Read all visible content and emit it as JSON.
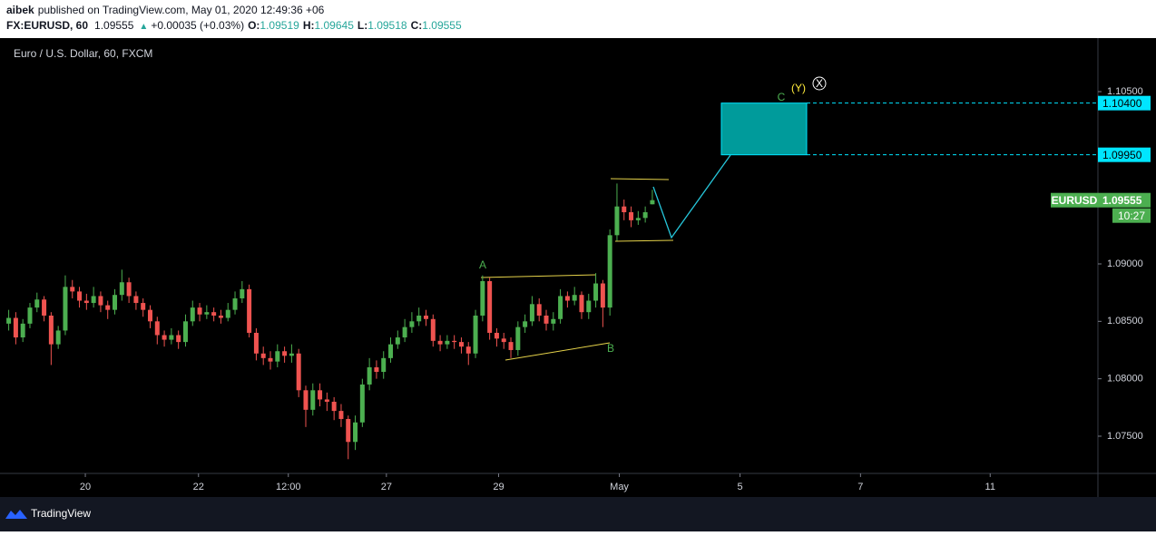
{
  "header": {
    "author": "aibek",
    "published": "published on TradingView.com, May 01, 2020 12:49:36 +06",
    "symbol": "FX:EURUSD, 60",
    "last": 1.09555,
    "arrow": "▲",
    "change": "+0.00035 (+0.03%)",
    "ohlc": [
      {
        "label": "O:",
        "value": 1.09519
      },
      {
        "label": "H:",
        "value": 1.09645
      },
      {
        "label": "L:",
        "value": 1.09518
      },
      {
        "label": "C:",
        "value": 1.09555
      }
    ]
  },
  "footer": {
    "brand": "TradingView"
  },
  "chart_data": {
    "type": "candlestick",
    "title": "Euro / U.S. Dollar, 60, FXCM",
    "up_color": "#4caf50",
    "down_color": "#ef5350",
    "x": [
      1,
      4,
      7,
      10,
      13,
      16,
      19,
      22,
      25,
      28,
      31,
      34,
      37,
      40,
      43,
      46,
      49,
      52,
      55,
      58,
      61,
      64,
      67,
      70,
      73,
      76,
      79,
      82,
      85,
      88,
      91,
      94,
      97,
      100,
      103,
      106,
      109,
      112,
      115,
      118,
      121,
      124,
      127,
      130,
      133,
      136,
      139,
      142,
      145,
      148,
      151,
      154,
      157,
      160,
      163,
      166,
      169,
      172,
      175,
      178,
      181,
      184,
      187,
      190,
      193,
      196,
      199,
      202,
      205,
      208,
      211,
      214,
      217,
      220,
      223,
      226,
      229,
      232,
      235,
      238,
      241,
      244,
      247,
      250,
      253,
      256,
      259,
      262,
      265,
      268,
      271,
      274
    ],
    "open": [
      1.0848,
      1.0853,
      1.0836,
      1.0848,
      1.0862,
      1.0869,
      1.0855,
      1.083,
      1.0842,
      1.088,
      1.0876,
      1.0868,
      1.0866,
      1.0872,
      1.0864,
      1.086,
      1.0873,
      1.0884,
      1.0872,
      1.0866,
      1.086,
      1.085,
      1.0838,
      1.0834,
      1.0838,
      1.0832,
      1.085,
      1.0862,
      1.0856,
      1.0858,
      1.0855,
      1.0853,
      1.086,
      1.087,
      1.0878,
      1.084,
      1.0822,
      1.0818,
      1.0815,
      1.0824,
      1.082,
      1.0822,
      1.079,
      1.0773,
      1.079,
      1.0782,
      1.078,
      1.0772,
      1.0765,
      1.0745,
      1.0762,
      1.0795,
      1.081,
      1.0806,
      1.0818,
      1.083,
      1.0836,
      1.0845,
      1.085,
      1.0855,
      1.0852,
      1.0833,
      1.083,
      1.0833,
      1.0832,
      1.0828,
      1.0822,
      1.0855,
      1.0885,
      1.084,
      1.0835,
      1.0832,
      1.0825,
      1.0845,
      1.085,
      1.0865,
      1.0855,
      1.0848,
      1.0852,
      1.0872,
      1.0868,
      1.0873,
      1.0858,
      1.0868,
      1.0883,
      1.0862,
      1.0925,
      1.095,
      1.0945,
      1.0938,
      1.094,
      1.09519
    ],
    "high": [
      1.086,
      1.0858,
      1.0852,
      1.0866,
      1.0875,
      1.0872,
      1.0858,
      1.0846,
      1.089,
      1.0886,
      1.088,
      1.0874,
      1.088,
      1.0876,
      1.0868,
      1.0878,
      1.0895,
      1.0888,
      1.0876,
      1.087,
      1.0864,
      1.0854,
      1.0842,
      1.0844,
      1.0842,
      1.0856,
      1.0868,
      1.0866,
      1.0864,
      1.0862,
      1.086,
      1.0866,
      1.0876,
      1.0885,
      1.0882,
      1.0844,
      1.0828,
      1.0824,
      1.083,
      1.0828,
      1.083,
      1.0826,
      1.0794,
      1.0796,
      1.0796,
      1.0788,
      1.0784,
      1.0778,
      1.0768,
      1.0768,
      1.08,
      1.0818,
      1.0816,
      1.0824,
      1.0836,
      1.0842,
      1.0852,
      1.0858,
      1.0862,
      1.086,
      1.0856,
      1.0838,
      1.0838,
      1.0838,
      1.0836,
      1.0832,
      1.086,
      1.089,
      1.0888,
      1.0844,
      1.084,
      1.0836,
      1.085,
      1.0856,
      1.0872,
      1.087,
      1.086,
      1.0858,
      1.0878,
      1.0876,
      1.088,
      1.0876,
      1.0874,
      1.0892,
      1.0886,
      1.093,
      1.097,
      1.0956,
      1.095,
      1.0946,
      1.095,
      1.09645
    ],
    "low": [
      1.0842,
      1.083,
      1.0832,
      1.0844,
      1.0858,
      1.085,
      1.0812,
      1.0826,
      1.0838,
      1.087,
      1.0862,
      1.086,
      1.0862,
      1.0858,
      1.0852,
      1.0856,
      1.0868,
      1.0866,
      1.086,
      1.0854,
      1.0844,
      1.083,
      1.0828,
      1.083,
      1.0826,
      1.0828,
      1.0846,
      1.085,
      1.0852,
      1.085,
      1.0848,
      1.085,
      1.0856,
      1.0866,
      1.0836,
      1.0816,
      1.0812,
      1.0808,
      1.081,
      1.0814,
      1.0814,
      1.0784,
      1.0758,
      1.0768,
      1.0776,
      1.0772,
      1.0764,
      1.0758,
      1.073,
      1.0738,
      1.0758,
      1.079,
      1.08,
      1.08,
      1.0814,
      1.0826,
      1.0832,
      1.084,
      1.0846,
      1.0846,
      1.0828,
      1.0824,
      1.0826,
      1.0826,
      1.0822,
      1.0812,
      1.0818,
      1.085,
      1.0834,
      1.0828,
      1.0826,
      1.0818,
      1.082,
      1.084,
      1.0846,
      1.085,
      1.0842,
      1.0842,
      1.0848,
      1.0862,
      1.0864,
      1.0852,
      1.0852,
      1.0862,
      1.0845,
      1.0855,
      1.092,
      1.0938,
      1.0932,
      1.0934,
      1.0936,
      1.09518
    ],
    "close": [
      1.0853,
      1.0836,
      1.0848,
      1.0862,
      1.0869,
      1.0855,
      1.083,
      1.0842,
      1.088,
      1.0876,
      1.0868,
      1.0866,
      1.0872,
      1.0864,
      1.086,
      1.0873,
      1.0884,
      1.0872,
      1.0866,
      1.086,
      1.085,
      1.0838,
      1.0834,
      1.0838,
      1.0832,
      1.085,
      1.0862,
      1.0856,
      1.0858,
      1.0855,
      1.0853,
      1.086,
      1.087,
      1.0878,
      1.084,
      1.0822,
      1.0818,
      1.0815,
      1.0824,
      1.082,
      1.0822,
      1.079,
      1.0773,
      1.079,
      1.0782,
      1.078,
      1.0772,
      1.0765,
      1.0745,
      1.0762,
      1.0795,
      1.081,
      1.0806,
      1.0818,
      1.083,
      1.0836,
      1.0845,
      1.085,
      1.0855,
      1.0852,
      1.0833,
      1.083,
      1.0833,
      1.0832,
      1.0828,
      1.0822,
      1.0855,
      1.0885,
      1.084,
      1.0835,
      1.0832,
      1.0825,
      1.0845,
      1.085,
      1.0865,
      1.0855,
      1.0848,
      1.0852,
      1.0872,
      1.0868,
      1.0873,
      1.0858,
      1.0868,
      1.0883,
      1.0862,
      1.0925,
      1.095,
      1.0945,
      1.0938,
      1.094,
      1.0945,
      1.09555
    ],
    "xlim": [
      0,
      463
    ],
    "ylim": [
      1.07176,
      1.10966
    ],
    "xticks": [
      {
        "value": 33.5,
        "label": "20"
      },
      {
        "value": 81.5,
        "label": "22"
      },
      {
        "value": 119.6,
        "label": "12:00"
      },
      {
        "value": 161.2,
        "label": "27"
      },
      {
        "value": 208.8,
        "label": "29"
      },
      {
        "value": 260,
        "label": "May"
      },
      {
        "value": 311.2,
        "label": "5"
      },
      {
        "value": 362.3,
        "label": "7"
      },
      {
        "value": 417.3,
        "label": "11"
      }
    ],
    "yticks": [
      {
        "value": 1.075,
        "label": "1.07500"
      },
      {
        "value": 1.08,
        "label": "1.08000"
      },
      {
        "value": 1.085,
        "label": "1.08500"
      },
      {
        "value": 1.09,
        "label": "1.09000"
      },
      {
        "value": 1.105,
        "label": "1.10500"
      }
    ],
    "grid": false,
    "target_zone": {
      "top": {
        "value": 1.104,
        "label": "1.10400"
      },
      "bottom": {
        "value": 1.0995,
        "label": "1.09950"
      },
      "color": "#009b9b"
    },
    "last_price": {
      "symbol": "EURUSD",
      "value": 1.09555,
      "countdown": "10:27",
      "color": "#4caf50"
    },
    "annotations": {
      "wave_a": "A",
      "wave_b": "B",
      "wave_c": "C",
      "wave_y": "(Y)",
      "wave_x": "X"
    }
  }
}
